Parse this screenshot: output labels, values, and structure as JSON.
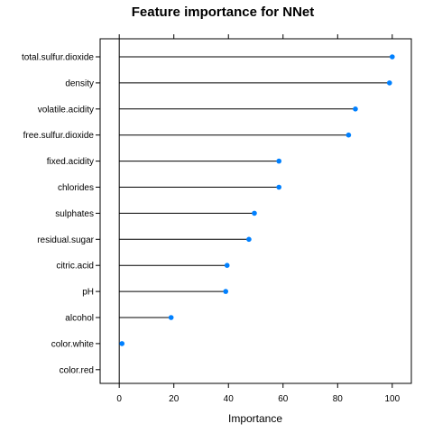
{
  "chart_data": {
    "type": "dotplot",
    "title": "Feature importance for NNet",
    "xlabel": "Importance",
    "ylabel": "",
    "xlim": [
      -7,
      107
    ],
    "x_ticks": [
      0,
      20,
      40,
      60,
      80,
      100
    ],
    "grid": false,
    "legend": "none",
    "colors": {
      "point": "#0080ff",
      "stem": "#000000",
      "axis": "#000000"
    },
    "categories": [
      "total.sulfur.dioxide",
      "density",
      "volatile.acidity",
      "free.sulfur.dioxide",
      "fixed.acidity",
      "chlorides",
      "sulphates",
      "residual.sugar",
      "citric.acid",
      "pH",
      "alcohol",
      "color.white",
      "color.red"
    ],
    "values": [
      100,
      99,
      86.5,
      84,
      58.5,
      58.5,
      49.5,
      47.5,
      39.5,
      39,
      19,
      1,
      0
    ]
  }
}
